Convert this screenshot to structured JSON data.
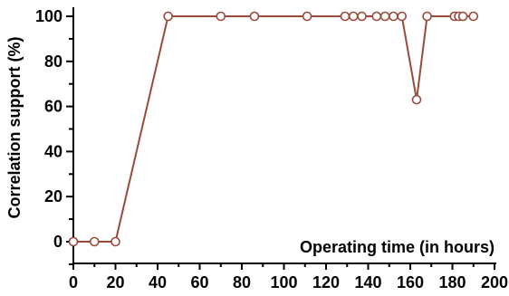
{
  "chart_data": {
    "type": "line",
    "title": "",
    "xlabel": "Operating time (in hours)",
    "ylabel": "Correlation support (%)",
    "xlim": [
      0,
      200
    ],
    "ylim": [
      -10,
      100
    ],
    "xticks": [
      0,
      20,
      40,
      60,
      80,
      100,
      120,
      140,
      160,
      180,
      200
    ],
    "yticks": [
      0,
      20,
      40,
      60,
      80,
      100
    ],
    "grid": false,
    "legend": "none",
    "colors": {
      "line": "#9b4a3a",
      "marker_fill": "#ffffff",
      "axis": "#000000"
    },
    "series": [
      {
        "x": [
          0,
          10,
          20,
          45,
          70,
          86,
          111,
          129,
          133,
          137,
          144,
          148,
          152,
          156,
          163,
          168,
          181,
          183,
          185,
          190
        ],
        "y": [
          0,
          0,
          0,
          100,
          100,
          100,
          100,
          100,
          100,
          100,
          100,
          100,
          100,
          100,
          63,
          100,
          100,
          100,
          100,
          100
        ],
        "marker": "open-circle"
      }
    ]
  }
}
